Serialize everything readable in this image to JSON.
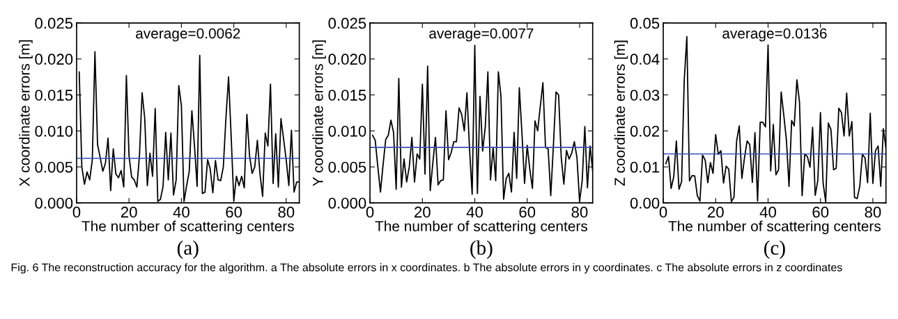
{
  "chart_data": [
    {
      "type": "line",
      "ylabel": "X coordinate errors [m]",
      "xlabel": "The number of scattering centers",
      "annotations": [
        "average=0.0062",
        "(a)",
        "Fig. 6 The reconstruction accuracy for the algorithm. a The absolute errors in x coordinates. b The absolute errors in y coordinates. c The absolute errors in z coordinates"
      ],
      "x": [
        1,
        2,
        3,
        4,
        5,
        6,
        7,
        8,
        9,
        10,
        11,
        12,
        13,
        14,
        15,
        16,
        17,
        18,
        19,
        20,
        21,
        22,
        23,
        24,
        25,
        26,
        27,
        28,
        29,
        30,
        31,
        32,
        33,
        34,
        35,
        36,
        37,
        38,
        39,
        40,
        41,
        42,
        43,
        44,
        45,
        46,
        47,
        48,
        49,
        50,
        51,
        52,
        53,
        54,
        55,
        56,
        57,
        58,
        59,
        60,
        61,
        62,
        63,
        64,
        65,
        66,
        67,
        68,
        69,
        70,
        71,
        72,
        73,
        74,
        75,
        76,
        77,
        78,
        79,
        80,
        81,
        82,
        83,
        84,
        85
      ],
      "series": [
        {
          "color": "#000000",
          "values": [
            0.0182,
            0.005,
            0.0026,
            0.0043,
            0.0032,
            0.006,
            0.021,
            0.0081,
            0.0063,
            0.0044,
            0.0055,
            0.009,
            0.0017,
            0.0075,
            0.004,
            0.0035,
            0.0045,
            0.0022,
            0.0177,
            0.0066,
            0.0036,
            0.0032,
            0.0022,
            0.0066,
            0.0153,
            0.0118,
            0.0024,
            0.0069,
            0.0037,
            0.0131,
            0.0002,
            0.0005,
            0.0023,
            0.0098,
            0.0032,
            0.0097,
            0.0011,
            0.0032,
            0.0163,
            0.0135,
            0.0002,
            0.0024,
            0.0044,
            0.0128,
            0.0079,
            0.0023,
            0.0205,
            0.0013,
            0.0015,
            0.006,
            0.0047,
            0.0014,
            0.0059,
            0.0032,
            0.0031,
            0.005,
            0.0118,
            0.0175,
            0.0092,
            0.0003,
            0.0037,
            0.0024,
            0.0037,
            0.0021,
            0.0123,
            0.0066,
            0.0041,
            0.005,
            0.0087,
            0.004,
            0.0009,
            0.0097,
            0.0079,
            0.0165,
            0.0027,
            0.0096,
            0.0022,
            0.0117,
            0.0089,
            0.006,
            0.0024,
            0.0101,
            0.0015,
            0.0029,
            0.0029
          ]
        }
      ],
      "ref_lines": [
        {
          "axis": "y",
          "value": 0.0062,
          "color": "#3a4fb8"
        }
      ],
      "xlim": [
        0,
        85
      ],
      "xticks": [
        0,
        20,
        40,
        60,
        80
      ],
      "ylim": [
        0,
        0.025
      ],
      "yticks": [
        {
          "value": 0,
          "label": "0.000"
        },
        {
          "value": 0.005,
          "label": "0.005"
        },
        {
          "value": 0.01,
          "label": "0.010"
        },
        {
          "value": 0.015,
          "label": "0.015"
        },
        {
          "value": 0.02,
          "label": "0.020"
        },
        {
          "value": 0.025,
          "label": "0.025"
        }
      ],
      "grid": false,
      "legend": false
    },
    {
      "type": "line",
      "ylabel": "Y coordinate errors [m]",
      "xlabel": "The number of scattering centers",
      "annotations": [
        "average=0.0077",
        "(b)"
      ],
      "x": [
        1,
        2,
        3,
        4,
        5,
        6,
        7,
        8,
        9,
        10,
        11,
        12,
        13,
        14,
        15,
        16,
        17,
        18,
        19,
        20,
        21,
        22,
        23,
        24,
        25,
        26,
        27,
        28,
        29,
        30,
        31,
        32,
        33,
        34,
        35,
        36,
        37,
        38,
        39,
        40,
        41,
        42,
        43,
        44,
        45,
        46,
        47,
        48,
        49,
        50,
        51,
        52,
        53,
        54,
        55,
        56,
        57,
        58,
        59,
        60,
        61,
        62,
        63,
        64,
        65,
        66,
        67,
        68,
        69,
        70,
        71,
        72,
        73,
        74,
        75,
        76,
        77,
        78,
        79,
        80,
        81,
        82,
        83,
        84,
        85
      ],
      "series": [
        {
          "color": "#000000",
          "values": [
            0.0094,
            0.0087,
            0.005,
            0.0015,
            0.0053,
            0.0088,
            0.0094,
            0.0115,
            0.0098,
            0.0019,
            0.0173,
            0.0022,
            0.0061,
            0.0029,
            0.005,
            0.0091,
            0.0029,
            0.0068,
            0.0061,
            0.0165,
            0.004,
            0.019,
            0.0017,
            0.0056,
            0.0091,
            0.0025,
            0.0031,
            0.0032,
            0.0128,
            0.006,
            0.007,
            0.0085,
            0.0085,
            0.0132,
            0.0123,
            0.01,
            0.0153,
            0.0075,
            0.0012,
            0.0219,
            0.0013,
            0.0148,
            0.0072,
            0.0105,
            0.0182,
            0.0032,
            0.0077,
            0.0031,
            0.0182,
            0.0148,
            0.0005,
            0.0034,
            0.0041,
            0.0015,
            0.0098,
            0.0034,
            0.016,
            0.0097,
            0.0027,
            0.008,
            0.0047,
            0.002,
            0.0114,
            0.01,
            0.0134,
            0.0167,
            0.0077,
            0.0075,
            0.001,
            0.0079,
            0.0154,
            0.015,
            0.0063,
            0.0026,
            0.0073,
            0.0061,
            0.0069,
            0.0085,
            0.0063,
            0.0002,
            0.0031,
            0.0106,
            0.0021,
            0.0079,
            0.0045
          ]
        }
      ],
      "ref_lines": [
        {
          "axis": "y",
          "value": 0.0077,
          "color": "#3a4fb8"
        }
      ],
      "xlim": [
        0,
        85
      ],
      "xticks": [
        0,
        20,
        40,
        60,
        80
      ],
      "ylim": [
        0,
        0.025
      ],
      "yticks": [
        {
          "value": 0,
          "label": "0.000"
        },
        {
          "value": 0.005,
          "label": "0.005"
        },
        {
          "value": 0.01,
          "label": "0.010"
        },
        {
          "value": 0.015,
          "label": "0.015"
        },
        {
          "value": 0.02,
          "label": "0.020"
        },
        {
          "value": 0.025,
          "label": "0.025"
        }
      ],
      "grid": false,
      "legend": false
    },
    {
      "type": "line",
      "ylabel": "Z coordinate errors [m]",
      "xlabel": "The number of scattering centers",
      "annotations": [
        "average=0.0136",
        "(c)"
      ],
      "x": [
        1,
        2,
        3,
        4,
        5,
        6,
        7,
        8,
        9,
        10,
        11,
        12,
        13,
        14,
        15,
        16,
        17,
        18,
        19,
        20,
        21,
        22,
        23,
        24,
        25,
        26,
        27,
        28,
        29,
        30,
        31,
        32,
        33,
        34,
        35,
        36,
        37,
        38,
        39,
        40,
        41,
        42,
        43,
        44,
        45,
        46,
        47,
        48,
        49,
        50,
        51,
        52,
        53,
        54,
        55,
        56,
        57,
        58,
        59,
        60,
        61,
        62,
        63,
        64,
        65,
        66,
        67,
        68,
        69,
        70,
        71,
        72,
        73,
        74,
        75,
        76,
        77,
        78,
        79,
        80,
        81,
        82,
        83,
        84,
        85
      ],
      "series": [
        {
          "color": "#000000",
          "values": [
            0.0109,
            0.0129,
            0.004,
            0.0073,
            0.0172,
            0.0038,
            0.0059,
            0.034,
            0.0462,
            0.0061,
            0.0076,
            0.0075,
            0.002,
            0.0005,
            0.0133,
            0.0119,
            0.0056,
            0.0112,
            0.0082,
            0.019,
            0.0135,
            0.0145,
            0.0055,
            0.0102,
            0.0094,
            0.0003,
            0.0016,
            0.0172,
            0.0214,
            0.0068,
            0.0125,
            0.0172,
            0.0162,
            0.0057,
            0.0195,
            0.0005,
            0.0224,
            0.0224,
            0.0211,
            0.0439,
            0.0089,
            0.0218,
            0.0078,
            0.0092,
            0.0308,
            0.0244,
            0.0175,
            0.0046,
            0.0229,
            0.0214,
            0.0342,
            0.028,
            0.002,
            0.0135,
            0.0129,
            0.0099,
            0.021,
            0.0021,
            0.0063,
            0.0251,
            0.0056,
            0.0003,
            0.0222,
            0.0204,
            0.0092,
            0.0096,
            0.0263,
            0.0251,
            0.0186,
            0.0305,
            0.0186,
            0.0226,
            0.0015,
            0.0012,
            0.0046,
            0.0135,
            0.0125,
            0.0056,
            0.0249,
            0.0054,
            0.0145,
            0.0158,
            0.0046,
            0.0206,
            0.0152
          ]
        }
      ],
      "ref_lines": [
        {
          "axis": "y",
          "value": 0.0136,
          "color": "#3a4fb8"
        }
      ],
      "xlim": [
        0,
        85
      ],
      "xticks": [
        0,
        20,
        40,
        60,
        80
      ],
      "ylim": [
        0,
        0.05
      ],
      "yticks": [
        {
          "value": 0,
          "label": "0.00"
        },
        {
          "value": 0.01,
          "label": "0.01"
        },
        {
          "value": 0.02,
          "label": "0.02"
        },
        {
          "value": 0.03,
          "label": "0.03"
        },
        {
          "value": 0.04,
          "label": "0.04"
        },
        {
          "value": 0.05,
          "label": "0.05"
        }
      ],
      "grid": false,
      "legend": false
    }
  ]
}
